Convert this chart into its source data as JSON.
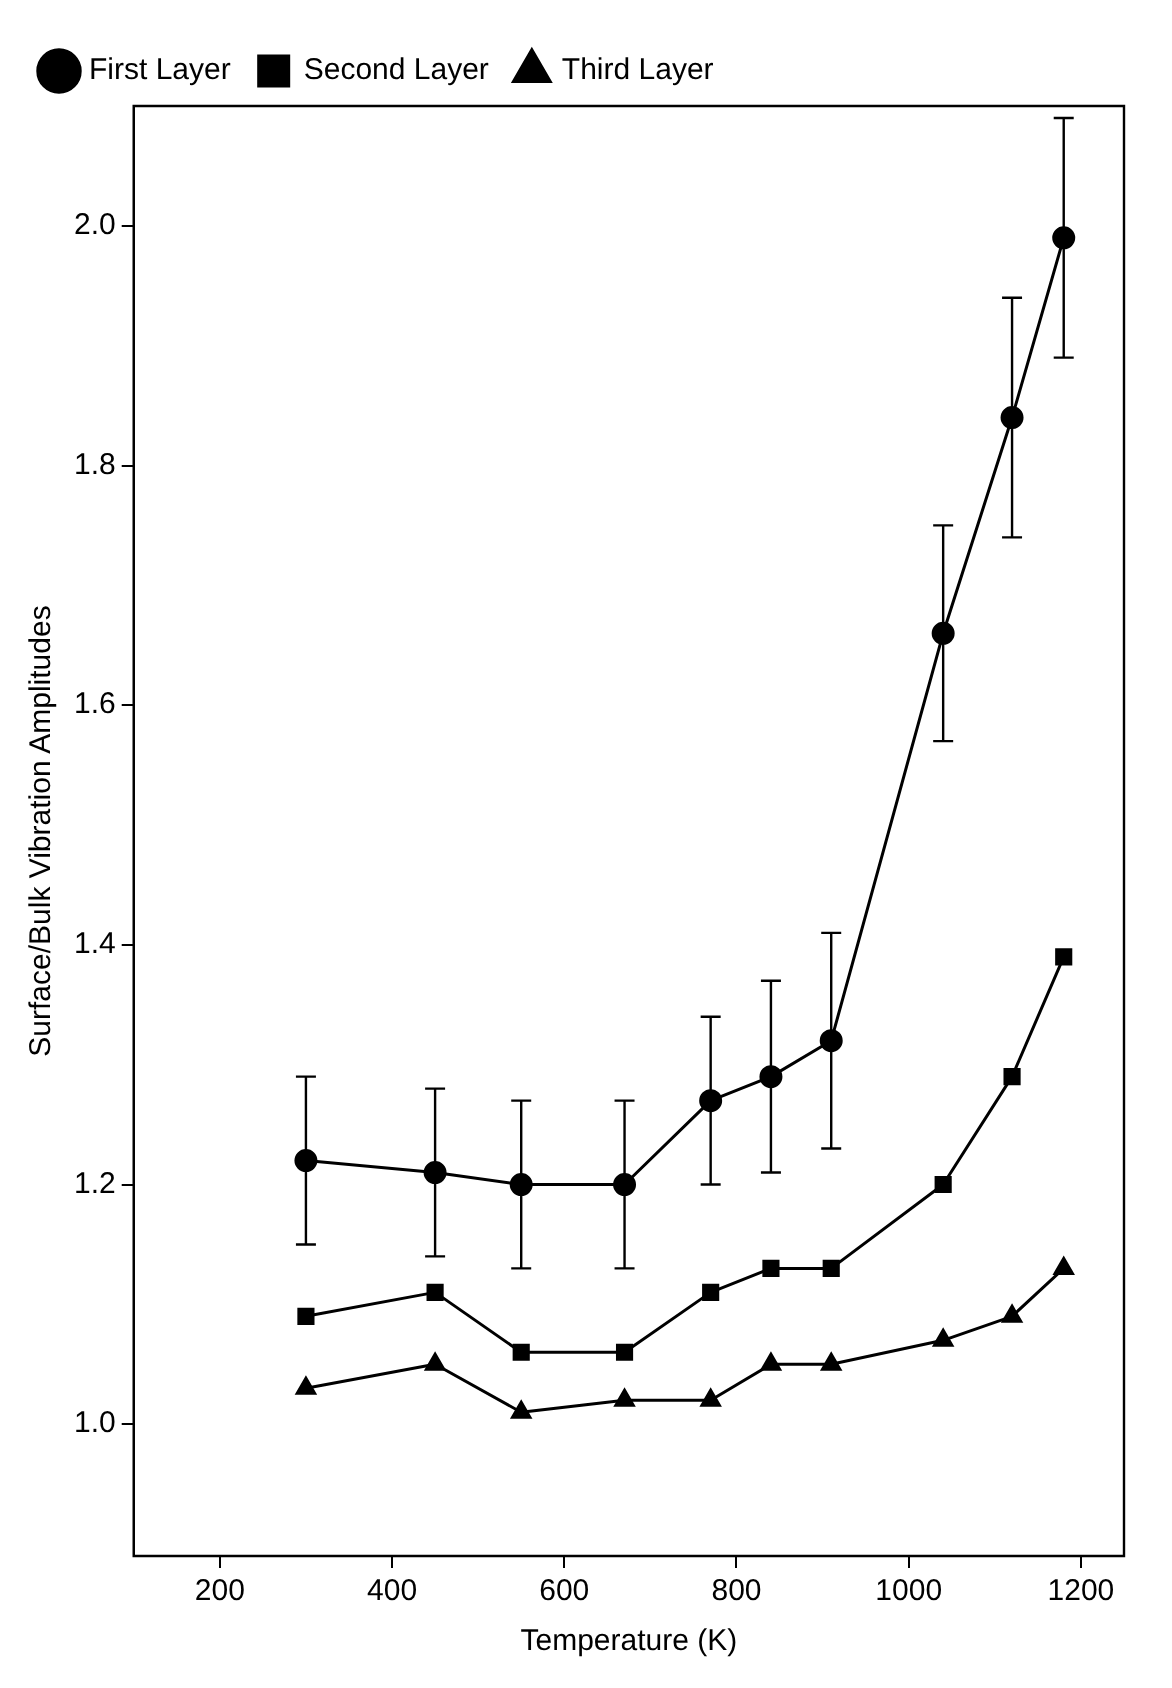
{
  "chart_data": {
    "type": "line",
    "xlabel": "Temperature (K)",
    "ylabel": "Surface/Bulk Vibration Amplitudes",
    "x": [
      300,
      450,
      550,
      670,
      770,
      840,
      910,
      1040,
      1120,
      1180
    ],
    "series": [
      {
        "name": "First Layer",
        "color": "#000000",
        "marker": "circle",
        "values": [
          1.22,
          1.21,
          1.2,
          1.2,
          1.27,
          1.29,
          1.32,
          1.66,
          1.84,
          1.99
        ],
        "errors": [
          0.07,
          0.07,
          0.07,
          0.07,
          0.07,
          0.08,
          0.09,
          0.09,
          0.1,
          0.1
        ]
      },
      {
        "name": "Second Layer",
        "color": "#000000",
        "marker": "square",
        "values": [
          1.09,
          1.11,
          1.06,
          1.06,
          1.11,
          1.13,
          1.13,
          1.2,
          1.29,
          1.39
        ]
      },
      {
        "name": "Third Layer",
        "color": "#000000",
        "marker": "triangle",
        "values": [
          1.03,
          1.05,
          1.01,
          1.02,
          1.02,
          1.05,
          1.05,
          1.07,
          1.09,
          1.13
        ]
      }
    ],
    "xlim": [
      100,
      1250
    ],
    "xticks": [
      200,
      400,
      600,
      800,
      1000,
      1200
    ],
    "ylim": [
      0.89,
      2.1
    ],
    "yticks": [
      {
        "value": 1.0,
        "label": "1.0"
      },
      1.2,
      1.4,
      1.6,
      1.8,
      {
        "value": 2.0,
        "label": "2.0"
      }
    ],
    "legend": "top left",
    "grid": false,
    "line_style": "solid"
  }
}
